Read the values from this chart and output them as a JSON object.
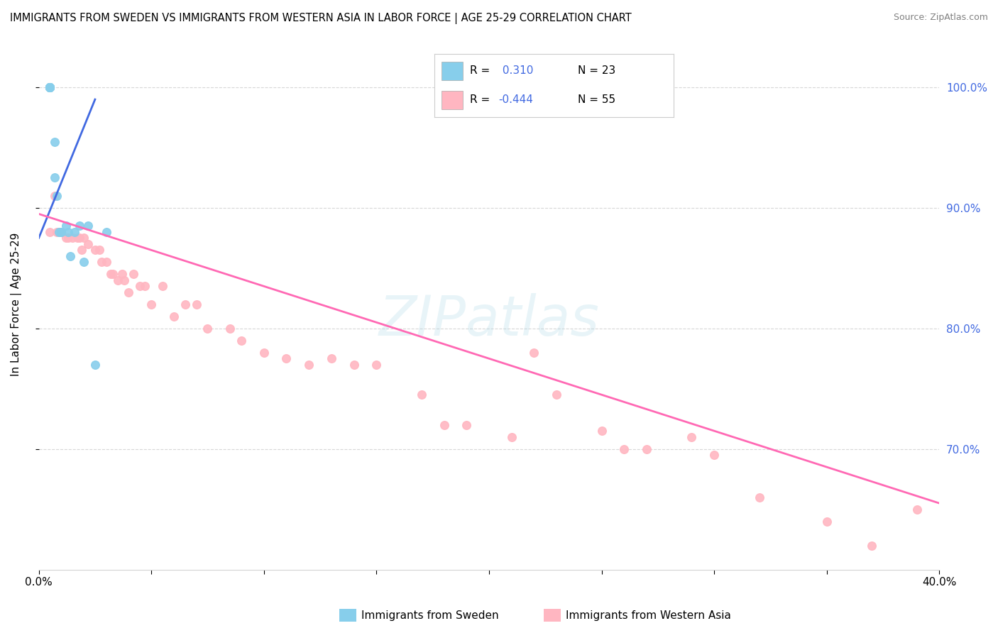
{
  "title": "IMMIGRANTS FROM SWEDEN VS IMMIGRANTS FROM WESTERN ASIA IN LABOR FORCE | AGE 25-29 CORRELATION CHART",
  "source_text": "Source: ZipAtlas.com",
  "ylabel": "In Labor Force | Age 25-29",
  "xlim": [
    0.0,
    0.4
  ],
  "ylim": [
    0.6,
    1.04
  ],
  "x_ticks": [
    0.0,
    0.1,
    0.2,
    0.3,
    0.4
  ],
  "y_ticks_right": [
    0.7,
    0.8,
    0.9,
    1.0
  ],
  "y_tick_labels_right": [
    "70.0%",
    "80.0%",
    "90.0%",
    "100.0%"
  ],
  "x_tick_labels_ends": [
    "0.0%",
    "40.0%"
  ],
  "sweden_color": "#87CEEB",
  "western_asia_color": "#FFB6C1",
  "sweden_line_color": "#4169E1",
  "western_asia_line_color": "#FF69B4",
  "R_sweden": 0.31,
  "N_sweden": 23,
  "R_western_asia": -0.444,
  "N_western_asia": 55,
  "legend_label_sweden": "Immigrants from Sweden",
  "legend_label_western_asia": "Immigrants from Western Asia",
  "watermark": "ZIPatlas",
  "sweden_scatter_x": [
    0.005,
    0.005,
    0.005,
    0.005,
    0.005,
    0.005,
    0.005,
    0.005,
    0.007,
    0.007,
    0.008,
    0.009,
    0.01,
    0.01,
    0.012,
    0.013,
    0.014,
    0.016,
    0.018,
    0.02,
    0.022,
    0.025,
    0.03
  ],
  "sweden_scatter_y": [
    1.0,
    1.0,
    1.0,
    1.0,
    1.0,
    1.0,
    1.0,
    1.0,
    0.955,
    0.925,
    0.91,
    0.88,
    0.88,
    0.88,
    0.885,
    0.88,
    0.86,
    0.88,
    0.885,
    0.855,
    0.885,
    0.77,
    0.88
  ],
  "western_asia_scatter_x": [
    0.005,
    0.007,
    0.008,
    0.009,
    0.01,
    0.012,
    0.013,
    0.015,
    0.017,
    0.018,
    0.019,
    0.02,
    0.022,
    0.025,
    0.027,
    0.028,
    0.03,
    0.032,
    0.033,
    0.035,
    0.037,
    0.038,
    0.04,
    0.042,
    0.045,
    0.047,
    0.05,
    0.055,
    0.06,
    0.065,
    0.07,
    0.075,
    0.085,
    0.09,
    0.1,
    0.11,
    0.12,
    0.13,
    0.14,
    0.15,
    0.17,
    0.18,
    0.19,
    0.21,
    0.22,
    0.23,
    0.25,
    0.26,
    0.27,
    0.29,
    0.3,
    0.32,
    0.35,
    0.37,
    0.39
  ],
  "western_asia_scatter_y": [
    0.88,
    0.91,
    0.88,
    0.88,
    0.88,
    0.875,
    0.875,
    0.875,
    0.875,
    0.875,
    0.865,
    0.875,
    0.87,
    0.865,
    0.865,
    0.855,
    0.855,
    0.845,
    0.845,
    0.84,
    0.845,
    0.84,
    0.83,
    0.845,
    0.835,
    0.835,
    0.82,
    0.835,
    0.81,
    0.82,
    0.82,
    0.8,
    0.8,
    0.79,
    0.78,
    0.775,
    0.77,
    0.775,
    0.77,
    0.77,
    0.745,
    0.72,
    0.72,
    0.71,
    0.78,
    0.745,
    0.715,
    0.7,
    0.7,
    0.71,
    0.695,
    0.66,
    0.64,
    0.62,
    0.65
  ],
  "sweden_trend_x": [
    0.0,
    0.025
  ],
  "sweden_trend_y": [
    0.875,
    0.99
  ],
  "western_asia_trend_x": [
    0.0,
    0.4
  ],
  "western_asia_trend_y": [
    0.895,
    0.655
  ]
}
